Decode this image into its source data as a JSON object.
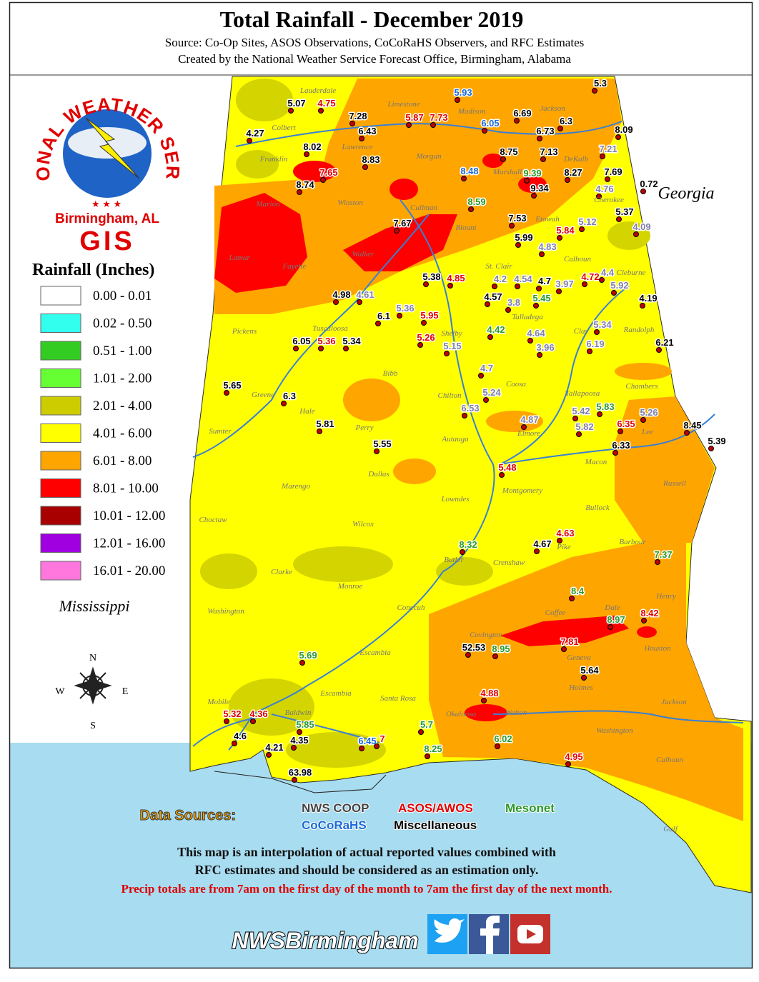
{
  "header": {
    "title": "Total Rainfall - December 2019",
    "source": "Source: Co-Op Sites, ASOS Observations, CoCoRaHS Observers, and RFC Estimates",
    "created": "Created by the National Weather Service Forecast Office, Birmingham, Alabama"
  },
  "logo": {
    "ring": "NATIONAL WEATHER SERVICE",
    "office": "Birmingham, AL",
    "gis": "GIS"
  },
  "legend": {
    "title": "Rainfall (Inches)",
    "items": [
      {
        "label": "0.00 - 0.01",
        "color": "#ffffff"
      },
      {
        "label": "0.02 - 0.50",
        "color": "#33ffee"
      },
      {
        "label": "0.51 - 1.00",
        "color": "#33cc22"
      },
      {
        "label": "1.01 - 2.00",
        "color": "#66ff33"
      },
      {
        "label": "2.01 - 4.00",
        "color": "#cccc00"
      },
      {
        "label": "4.01 - 6.00",
        "color": "#ffff00"
      },
      {
        "label": "6.01 - 8.00",
        "color": "#ffa500"
      },
      {
        "label": "8.01 - 10.00",
        "color": "#ff0000"
      },
      {
        "label": "10.01 - 12.00",
        "color": "#a80000"
      },
      {
        "label": "12.01 - 16.00",
        "color": "#a000e0"
      },
      {
        "label": "16.01 - 20.00",
        "color": "#ff77dd"
      }
    ]
  },
  "states": [
    "Mississippi",
    "Georgia"
  ],
  "compass": [
    "N",
    "S",
    "E",
    "W"
  ],
  "counties": [
    "Lauderdale",
    "Limestone",
    "Madison",
    "Jackson",
    "Colbert",
    "Lawrence",
    "Morgan",
    "DeKalb",
    "Franklin",
    "Marshall",
    "Cherokee",
    "Marion",
    "Winston",
    "Cullman",
    "Etowah",
    "Blount",
    "Lamar",
    "Walker",
    "Fayette",
    "Calhoun",
    "St. Clair",
    "Cleburne",
    "Talladega",
    "Pickens",
    "Tuscaloosa",
    "Shelby",
    "Clay",
    "Randolph",
    "Bibb",
    "Coosa",
    "Chilton",
    "Tallapoosa",
    "Chambers",
    "Greene",
    "Hale",
    "Perry",
    "Sumter",
    "Autauga",
    "Elmore",
    "Lee",
    "Macon",
    "Russell",
    "Marengo",
    "Dallas",
    "Lowndes",
    "Montgomery",
    "Bullock",
    "Choctaw",
    "Wilcox",
    "Pike",
    "Barbour",
    "Butler",
    "Crenshaw",
    "Clarke",
    "Monroe",
    "Henry",
    "Coffee",
    "Dale",
    "Washington",
    "Conecuh",
    "Covington",
    "Houston",
    "Geneva",
    "Escambia",
    "Escambia",
    "Holmes",
    "Santa Rosa",
    "Jackson",
    "Mobile",
    "Baldwin",
    "Okaloosa",
    "Walton",
    "Washington",
    "Calhoun",
    "Gulf"
  ],
  "stations": [
    {
      "value": 5.3,
      "color": "#000000"
    },
    {
      "value": 5.07,
      "color": "#000000"
    },
    {
      "value": 4.75,
      "color": "#e00000"
    },
    {
      "value": 5.93,
      "color": "#1a6ad8"
    },
    {
      "value": 7.28,
      "color": "#000000"
    },
    {
      "value": 5.87,
      "color": "#e00000"
    },
    {
      "value": 7.73,
      "color": "#e00000"
    },
    {
      "value": 6.69,
      "color": "#000000"
    },
    {
      "value": 6.3,
      "color": "#000000"
    },
    {
      "value": 6.43,
      "color": "#000000"
    },
    {
      "value": 6.05,
      "color": "#1a6ad8"
    },
    {
      "value": 6.73,
      "color": "#000000"
    },
    {
      "value": 8.09,
      "color": "#000000"
    },
    {
      "value": 4.27,
      "color": "#000000"
    },
    {
      "value": 8.02,
      "color": "#000000"
    },
    {
      "value": 8.83,
      "color": "#000000"
    },
    {
      "value": 8.75,
      "color": "#000000"
    },
    {
      "value": 7.13,
      "color": "#000000"
    },
    {
      "value": 7.21,
      "color": "#8080a8"
    },
    {
      "value": 8.48,
      "color": "#1a6ad8"
    },
    {
      "value": 9.39,
      "color": "#2a9a2a"
    },
    {
      "value": 8.27,
      "color": "#000000"
    },
    {
      "value": 7.69,
      "color": "#000000"
    },
    {
      "value": 7.65,
      "color": "#e00000"
    },
    {
      "value": 8.74,
      "color": "#000000"
    },
    {
      "value": 9.34,
      "color": "#000000"
    },
    {
      "value": 0.72,
      "color": "#000000"
    },
    {
      "value": 4.76,
      "color": "#8080a8"
    },
    {
      "value": 8.59,
      "color": "#2a9a2a"
    },
    {
      "value": 5.37,
      "color": "#000000"
    },
    {
      "value": 7.53,
      "color": "#000000"
    },
    {
      "value": 5.12,
      "color": "#8080a8"
    },
    {
      "value": 7.67,
      "color": "#000000"
    },
    {
      "value": 5.84,
      "color": "#e00000"
    },
    {
      "value": 4.09,
      "color": "#8080a8"
    },
    {
      "value": 5.99,
      "color": "#000000"
    },
    {
      "value": 4.83,
      "color": "#8080a8"
    },
    {
      "value": 5.38,
      "color": "#000000"
    },
    {
      "value": 4.85,
      "color": "#e00000"
    },
    {
      "value": 4.2,
      "color": "#8080a8"
    },
    {
      "value": 4.54,
      "color": "#8080a8"
    },
    {
      "value": 4.7,
      "color": "#000000"
    },
    {
      "value": 3.97,
      "color": "#8080a8"
    },
    {
      "value": 4.72,
      "color": "#e00000"
    },
    {
      "value": 4.4,
      "color": "#8080a8"
    },
    {
      "value": 5.92,
      "color": "#8080a8"
    },
    {
      "value": 4.98,
      "color": "#000000"
    },
    {
      "value": 4.61,
      "color": "#8080a8"
    },
    {
      "value": 4.57,
      "color": "#000000"
    },
    {
      "value": 5.45,
      "color": "#2a9a2a"
    },
    {
      "value": 3.8,
      "color": "#8080a8"
    },
    {
      "value": 4.19,
      "color": "#000000"
    },
    {
      "value": 5.36,
      "color": "#8080a8"
    },
    {
      "value": 6.1,
      "color": "#000000"
    },
    {
      "value": 5.95,
      "color": "#e00000"
    },
    {
      "value": 4.42,
      "color": "#2a9a2a"
    },
    {
      "value": 5.34,
      "color": "#8080a8"
    },
    {
      "value": 4.64,
      "color": "#8080a8"
    },
    {
      "value": 5.26,
      "color": "#e00000"
    },
    {
      "value": 6.05,
      "color": "#000000"
    },
    {
      "value": 5.36,
      "color": "#e00000"
    },
    {
      "value": 5.34,
      "color": "#000000"
    },
    {
      "value": 6.19,
      "color": "#8080a8"
    },
    {
      "value": 6.21,
      "color": "#000000"
    },
    {
      "value": 5.15,
      "color": "#8080a8"
    },
    {
      "value": 3.96,
      "color": "#8080a8"
    },
    {
      "value": 4.7,
      "color": "#8080a8"
    },
    {
      "value": 5.65,
      "color": "#000000"
    },
    {
      "value": 5.24,
      "color": "#8080a8"
    },
    {
      "value": 6.3,
      "color": "#000000"
    },
    {
      "value": 5.42,
      "color": "#8080a8"
    },
    {
      "value": 5.83,
      "color": "#2a9a2a"
    },
    {
      "value": 6.53,
      "color": "#8080a8"
    },
    {
      "value": 5.26,
      "color": "#8080a8"
    },
    {
      "value": 5.81,
      "color": "#000000"
    },
    {
      "value": 4.87,
      "color": "#8080a8"
    },
    {
      "value": 6.35,
      "color": "#e00000"
    },
    {
      "value": 5.82,
      "color": "#8080a8"
    },
    {
      "value": 8.45,
      "color": "#000000"
    },
    {
      "value": 5.39,
      "color": "#000000"
    },
    {
      "value": 5.55,
      "color": "#000000"
    },
    {
      "value": 6.33,
      "color": "#000000"
    },
    {
      "value": 5.48,
      "color": "#e00000"
    },
    {
      "value": 4.63,
      "color": "#e00000"
    },
    {
      "value": 4.67,
      "color": "#000000"
    },
    {
      "value": 8.32,
      "color": "#2a9a2a"
    },
    {
      "value": 7.37,
      "color": "#2a9a2a"
    },
    {
      "value": 8.4,
      "color": "#2a9a2a"
    },
    {
      "value": 8.42,
      "color": "#e00000"
    },
    {
      "value": 8.97,
      "color": "#2a9a2a"
    },
    {
      "value": 7.81,
      "color": "#e00000"
    },
    {
      "value": 52.53,
      "color": "#000000"
    },
    {
      "value": 8.95,
      "color": "#2a9a2a"
    },
    {
      "value": 5.64,
      "color": "#000000"
    },
    {
      "value": 5.69,
      "color": "#2a9a2a"
    },
    {
      "value": 4.88,
      "color": "#e00000"
    },
    {
      "value": 5.32,
      "color": "#e00000"
    },
    {
      "value": 4.36,
      "color": "#e00000"
    },
    {
      "value": 5.85,
      "color": "#2a9a2a"
    },
    {
      "value": 5.7,
      "color": "#2a9a2a"
    },
    {
      "value": 4.6,
      "color": "#000000"
    },
    {
      "value": 4.35,
      "color": "#000000"
    },
    {
      "value": 6.45,
      "color": "#1a6ad8"
    },
    {
      "value": 7,
      "color": "#e00000"
    },
    {
      "value": 6.02,
      "color": "#2a9a2a"
    },
    {
      "value": 4.21,
      "color": "#000000"
    },
    {
      "value": 8.25,
      "color": "#2a9a2a"
    },
    {
      "value": 4.95,
      "color": "#e00000"
    },
    {
      "value": 63.98,
      "color": "#000000"
    }
  ],
  "data_sources": {
    "title": "Data Sources:",
    "items": [
      {
        "label": "NWS COOP",
        "color": "#444444"
      },
      {
        "label": "ASOS/AWOS",
        "color": "#e00000"
      },
      {
        "label": "Mesonet",
        "color": "#2a9a2a"
      },
      {
        "label": "CoCoRaHS",
        "color": "#1a6ad8"
      },
      {
        "label": "Miscellaneous",
        "color": "#000000"
      }
    ]
  },
  "notes": [
    "This map is an interpolation of actual reported values combined with",
    "RFC estimates and should be considered as an estimation only.",
    "Precip totals are from 7am on the first day of the month to 7am the first day of the next month."
  ],
  "social": "NWSBirmingham"
}
